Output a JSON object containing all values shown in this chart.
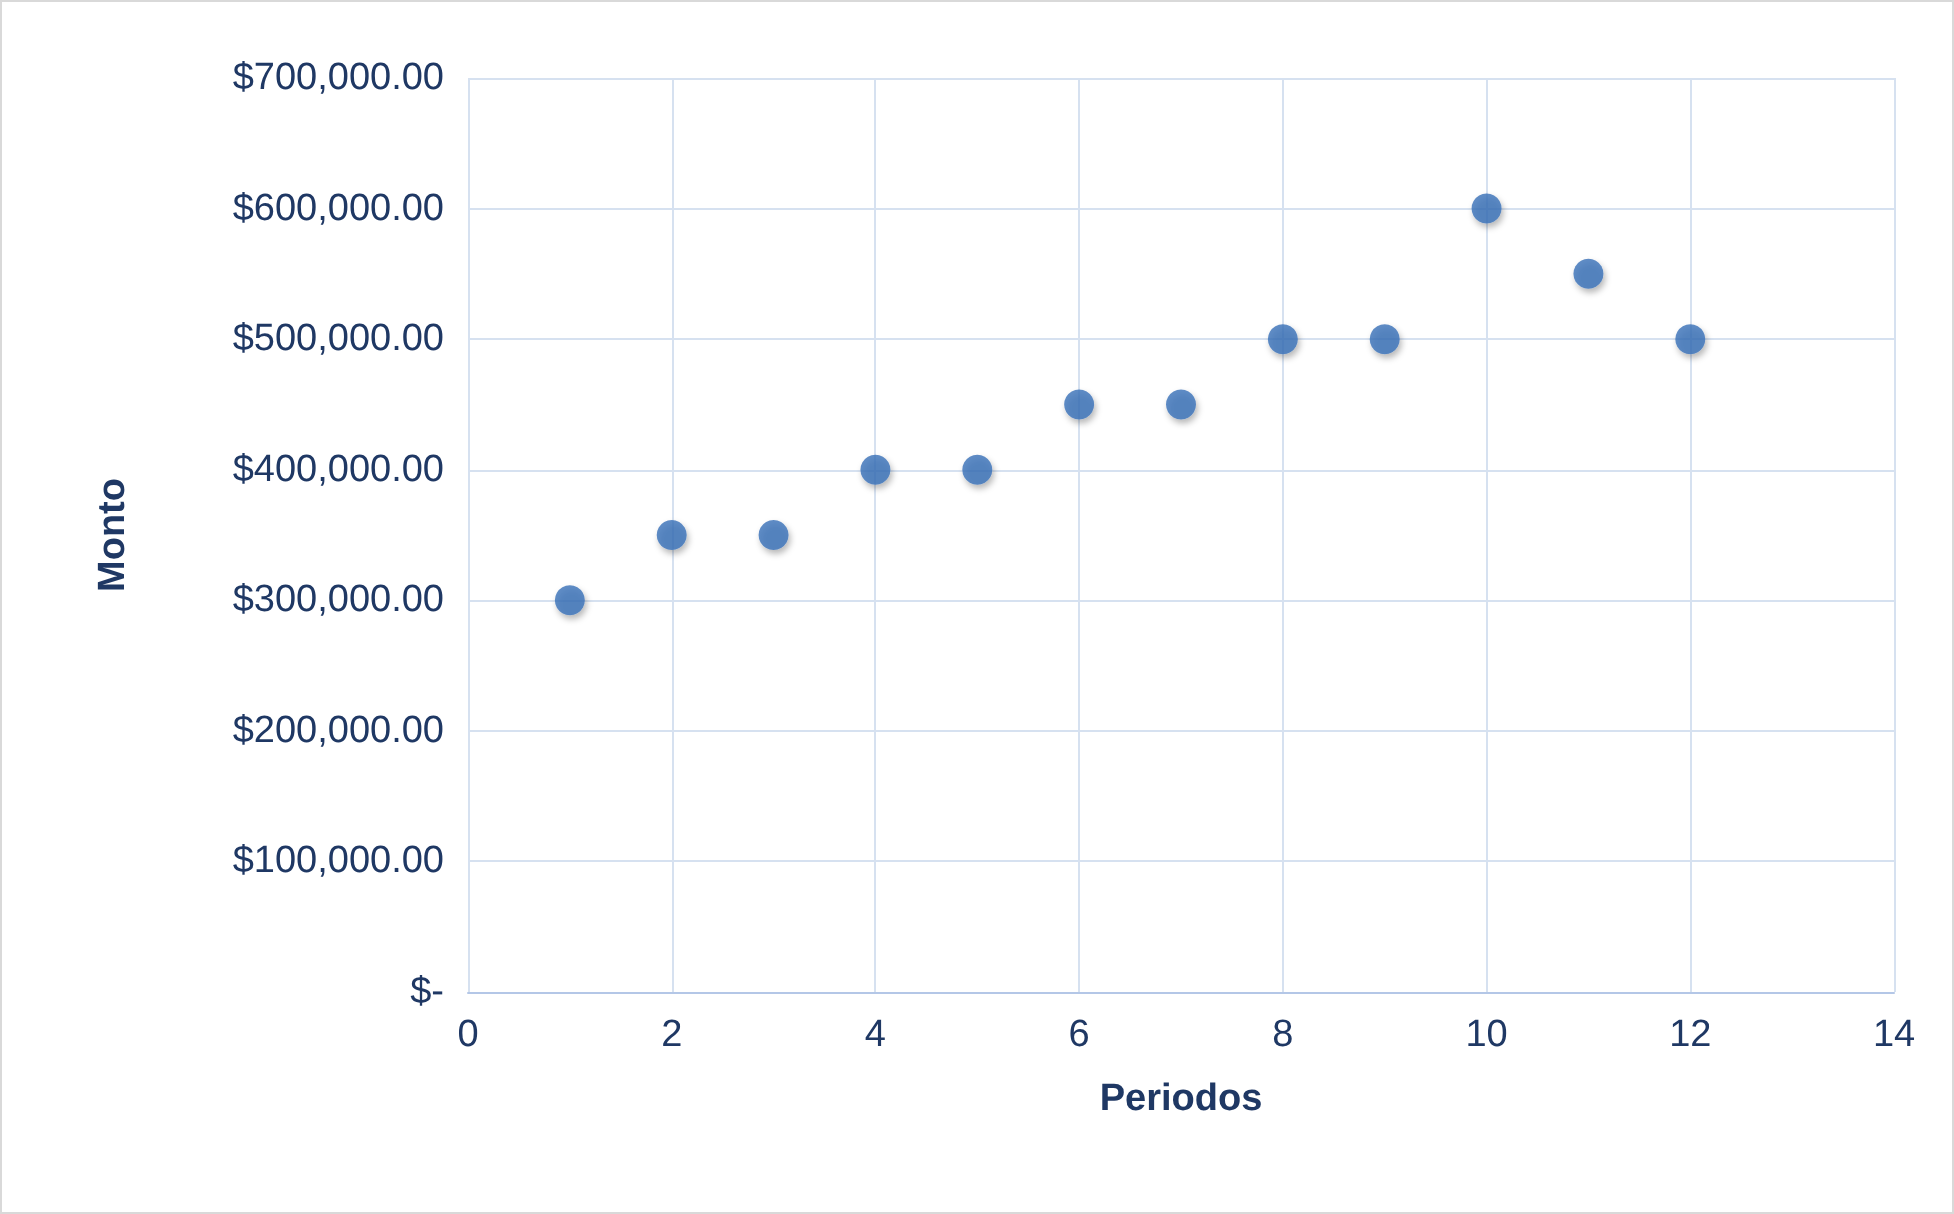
{
  "chart_data": {
    "type": "scatter",
    "xlabel": "Periodos",
    "ylabel": "Monto",
    "x": [
      1,
      2,
      3,
      4,
      5,
      6,
      7,
      8,
      9,
      10,
      11,
      12
    ],
    "series": [
      {
        "color": "#3a70b8",
        "values": [
          300000,
          350000,
          350000,
          400000,
          400000,
          450000,
          450000,
          500000,
          500000,
          600000,
          550000,
          500000
        ]
      }
    ],
    "xlim": [
      0,
      14
    ],
    "xticks": [
      0,
      2,
      4,
      6,
      8,
      10,
      12,
      14
    ],
    "ylim": [
      0,
      700000
    ],
    "yticks": [
      {
        "value": 0,
        "label": "$-"
      },
      {
        "value": 100000,
        "label": "$100,000.00"
      },
      {
        "value": 200000,
        "label": "$200,000.00"
      },
      {
        "value": 300000,
        "label": "$300,000.00"
      },
      {
        "value": 400000,
        "label": "$400,000.00"
      },
      {
        "value": 500000,
        "label": "$500,000.00"
      },
      {
        "value": 600000,
        "label": "$600,000.00"
      },
      {
        "value": 700000,
        "label": "$700,000.00"
      }
    ],
    "grid": true,
    "marker": "circle"
  }
}
